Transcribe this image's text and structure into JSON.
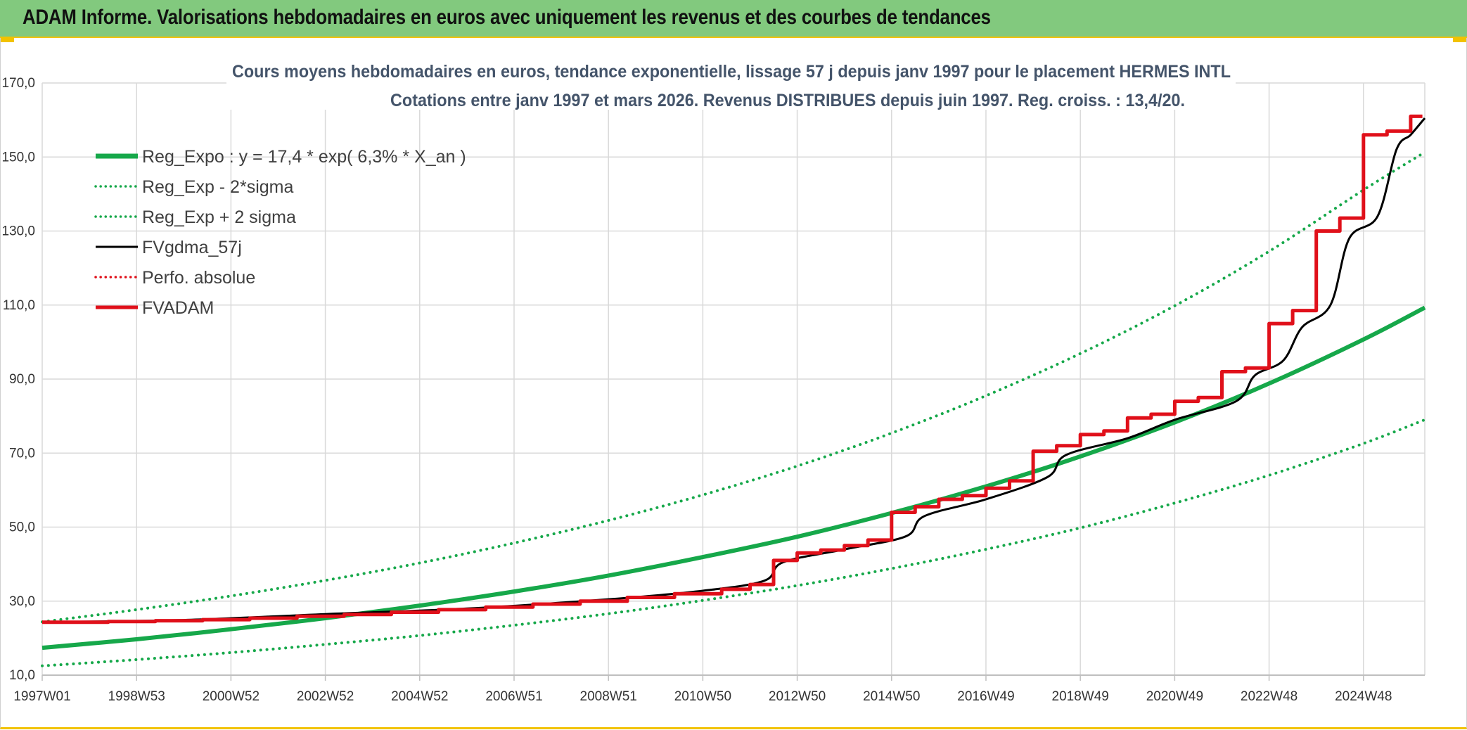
{
  "header": {
    "title": "ADAM Informe. Valorisations hebdomadaires en euros avec uniquement les revenus et des courbes de tendances"
  },
  "chart_data": {
    "type": "line",
    "title": "Cours moyens hebdomadaires en euros, tendance exponentielle, lissage 57 j depuis janv 1997 pour le placement HERMES INTL",
    "subtitle": "Cotations entre janv 1997 et mars 2026. Revenus DISTRIBUES depuis juin 1997. Reg. croiss. : 13,4/20.",
    "xlabel": "",
    "ylabel": "",
    "ylim": [
      10,
      170
    ],
    "xlim": [
      1997.0,
      2026.3
    ],
    "y_ticks": [
      "10,0",
      "30,0",
      "50,0",
      "70,0",
      "90,0",
      "110,0",
      "130,0",
      "150,0",
      "170,0"
    ],
    "x_ticks": [
      {
        "label": "1997W01",
        "x": 1997.0
      },
      {
        "label": "1998W53",
        "x": 1999.0
      },
      {
        "label": "2000W52",
        "x": 2001.0
      },
      {
        "label": "2002W52",
        "x": 2003.0
      },
      {
        "label": "2004W52",
        "x": 2005.0
      },
      {
        "label": "2006W51",
        "x": 2007.0
      },
      {
        "label": "2008W51",
        "x": 2009.0
      },
      {
        "label": "2010W50",
        "x": 2011.0
      },
      {
        "label": "2012W50",
        "x": 2013.0
      },
      {
        "label": "2014W50",
        "x": 2015.0
      },
      {
        "label": "2016W49",
        "x": 2017.0
      },
      {
        "label": "2018W49",
        "x": 2019.0
      },
      {
        "label": "2020W49",
        "x": 2021.0
      },
      {
        "label": "2022W48",
        "x": 2023.0
      },
      {
        "label": "2024W48",
        "x": 2025.0
      }
    ],
    "grid": true,
    "legend_position": "top-left",
    "series": [
      {
        "name": "Reg_Expo : y = 17,4 * exp( 6,3% *  X_an )",
        "color": "#16a84a",
        "style": "solid",
        "width": 6,
        "x": [
          1997.0,
          1999.0,
          2001.0,
          2003.0,
          2005.0,
          2007.0,
          2009.0,
          2011.0,
          2013.0,
          2015.0,
          2017.0,
          2019.0,
          2021.0,
          2023.0,
          2025.0,
          2026.3
        ],
        "y": [
          17.4,
          19.7,
          22.4,
          25.4,
          28.8,
          32.6,
          36.9,
          41.9,
          47.4,
          53.8,
          61.0,
          69.1,
          78.3,
          88.8,
          100.7,
          109.3
        ]
      },
      {
        "name": "Reg_Exp - 2*sigma",
        "color": "#16a84a",
        "style": "dotted",
        "width": 4,
        "x": [
          1997.0,
          1999.0,
          2001.0,
          2003.0,
          2005.0,
          2007.0,
          2009.0,
          2011.0,
          2013.0,
          2015.0,
          2017.0,
          2019.0,
          2021.0,
          2023.0,
          2025.0,
          2026.3
        ],
        "y": [
          12.5,
          14.2,
          16.1,
          18.3,
          20.7,
          23.5,
          26.6,
          30.2,
          34.2,
          38.8,
          44.0,
          49.8,
          56.5,
          64.0,
          72.6,
          79.0
        ]
      },
      {
        "name": "Reg_Exp + 2 sigma",
        "color": "#16a84a",
        "style": "dotted",
        "width": 4,
        "x": [
          1997.0,
          1999.0,
          2001.0,
          2003.0,
          2005.0,
          2007.0,
          2009.0,
          2011.0,
          2013.0,
          2015.0,
          2017.0,
          2019.0,
          2021.0,
          2023.0,
          2025.0,
          2026.3
        ],
        "y": [
          24.4,
          27.7,
          31.4,
          35.6,
          40.3,
          45.7,
          51.8,
          58.7,
          66.5,
          75.4,
          85.5,
          96.9,
          109.8,
          124.5,
          141.1,
          151.3
        ]
      },
      {
        "name": "FVgdma_57j",
        "color": "#000000",
        "style": "solid",
        "width": 3,
        "x": [
          1997.0,
          2000.0,
          2003.0,
          2006.0,
          2009.0,
          2011.0,
          2012.3,
          2012.7,
          2014.0,
          2015.3,
          2015.7,
          2017.0,
          2018.3,
          2018.7,
          2020.0,
          2021.0,
          2022.3,
          2022.7,
          2023.3,
          2023.7,
          2024.3,
          2024.7,
          2025.3,
          2025.7,
          2026.0,
          2026.3
        ],
        "y": [
          24.3,
          24.9,
          26.5,
          28.0,
          30.5,
          32.8,
          35.5,
          40.5,
          44.0,
          47.5,
          53.0,
          57.5,
          63.5,
          69.5,
          74.0,
          79.0,
          84.0,
          91.0,
          95.0,
          104.0,
          110.0,
          128.0,
          134.0,
          152.0,
          156.0,
          160.5
        ]
      },
      {
        "name": "Perfo. absolue",
        "color": "#e0101a",
        "style": "dotted",
        "width": 3,
        "x": [],
        "y": []
      },
      {
        "name": "FVADAM",
        "color": "#e0101a",
        "style": "step",
        "width": 5,
        "x": [
          1997.0,
          1998.4,
          1999.4,
          2000.4,
          2001.4,
          2002.4,
          2003.4,
          2004.4,
          2005.4,
          2006.4,
          2007.4,
          2008.4,
          2009.4,
          2010.4,
          2011.4,
          2012.0,
          2012.5,
          2013.0,
          2013.5,
          2014.0,
          2014.5,
          2015.0,
          2015.5,
          2016.0,
          2016.5,
          2017.0,
          2017.5,
          2018.0,
          2018.5,
          2019.0,
          2019.5,
          2020.0,
          2020.5,
          2021.0,
          2021.5,
          2022.0,
          2022.5,
          2023.0,
          2023.5,
          2024.0,
          2024.5,
          2025.0,
          2025.5,
          2026.0,
          2026.25
        ],
        "y": [
          24.3,
          24.5,
          24.7,
          25.0,
          25.4,
          25.9,
          26.4,
          27.0,
          27.7,
          28.4,
          29.2,
          30.0,
          31.0,
          32.0,
          33.2,
          34.5,
          41.0,
          43.0,
          43.8,
          45.0,
          46.5,
          54.0,
          55.5,
          57.5,
          58.5,
          60.5,
          62.5,
          70.5,
          72.0,
          75.0,
          76.0,
          79.5,
          80.5,
          84.0,
          85.0,
          92.0,
          93.0,
          105.0,
          108.5,
          130.0,
          133.5,
          156.0,
          157.0,
          161.0,
          161.0
        ]
      }
    ]
  }
}
